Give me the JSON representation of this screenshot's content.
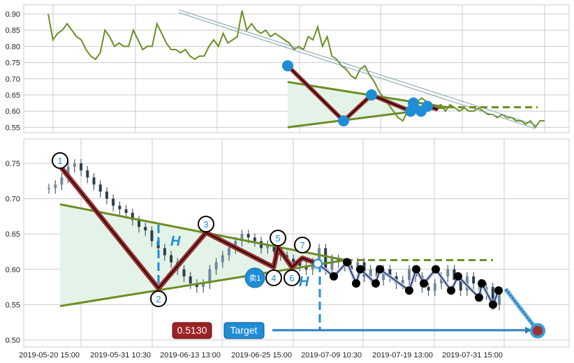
{
  "chart_data": [
    {
      "type": "line",
      "panel": "top",
      "yticks": [
        "0.90",
        "0.85",
        "0.80",
        "0.75",
        "0.70",
        "0.65",
        "0.60",
        "0.55"
      ],
      "ylim": [
        0.535,
        0.925
      ],
      "grid": true,
      "line_color": "#6b8e23",
      "values": [
        0.9,
        0.82,
        0.84,
        0.85,
        0.87,
        0.85,
        0.83,
        0.82,
        0.79,
        0.77,
        0.76,
        0.78,
        0.85,
        0.83,
        0.8,
        0.81,
        0.8,
        0.8,
        0.85,
        0.82,
        0.79,
        0.8,
        0.8,
        0.87,
        0.84,
        0.81,
        0.79,
        0.79,
        0.78,
        0.79,
        0.77,
        0.76,
        0.77,
        0.77,
        0.8,
        0.82,
        0.8,
        0.84,
        0.81,
        0.82,
        0.83,
        0.91,
        0.85,
        0.87,
        0.85,
        0.84,
        0.85,
        0.83,
        0.84,
        0.83,
        0.82,
        0.81,
        0.79,
        0.8,
        0.79,
        0.83,
        0.82,
        0.86,
        0.8,
        0.83,
        0.77,
        0.76,
        0.74,
        0.73,
        0.71,
        0.7,
        0.73,
        0.74,
        0.71,
        0.69,
        0.66,
        0.64,
        0.62,
        0.6,
        0.58,
        0.57,
        0.6,
        0.62,
        0.63,
        0.64,
        0.63,
        0.62,
        0.61,
        0.62,
        0.6,
        0.62,
        0.61,
        0.6,
        0.61,
        0.6,
        0.6,
        0.61,
        0.6,
        0.59,
        0.59,
        0.58,
        0.59,
        0.58,
        0.58,
        0.57,
        0.57,
        0.56,
        0.57,
        0.55,
        0.57,
        0.57
      ],
      "zigzag": [
        0.74,
        0.57,
        0.65,
        0.6,
        0.625,
        0.6,
        0.615,
        0.605
      ],
      "triangle": {
        "upper": [
          0.69,
          0.612
        ],
        "lower": [
          0.55,
          0.612
        ],
        "projection": 0.612
      },
      "colors": {
        "zigzag_marker": "#1f8dd6",
        "zigzag_line": "#a03030",
        "triangle": "#6b8e23",
        "fill": "#e3f3e8"
      }
    },
    {
      "type": "candlestick",
      "panel": "bottom",
      "yticks": [
        "0.75",
        "0.70",
        "0.65",
        "0.60",
        "0.55",
        "0.50"
      ],
      "ylim": [
        0.49,
        0.785
      ],
      "grid": true,
      "xticks": [
        "2019-05-20 15:00",
        "2019-05-31 10:30",
        "2019-06-13 13:00",
        "2019-06-25 15:00",
        "2019-07-09 10:30",
        "2019-07-19 13:00",
        "2019-07-31 15:00"
      ],
      "closes": [
        0.715,
        0.72,
        0.73,
        0.745,
        0.75,
        0.74,
        0.73,
        0.72,
        0.71,
        0.7,
        0.69,
        0.685,
        0.68,
        0.67,
        0.66,
        0.655,
        0.64,
        0.63,
        0.62,
        0.61,
        0.6,
        0.59,
        0.58,
        0.575,
        0.58,
        0.6,
        0.61,
        0.62,
        0.63,
        0.64,
        0.65,
        0.645,
        0.64,
        0.63,
        0.635,
        0.625,
        0.62,
        0.615,
        0.61,
        0.605,
        0.6,
        0.61,
        0.63,
        0.6,
        0.615,
        0.61,
        0.605,
        0.6,
        0.61,
        0.59,
        0.6,
        0.585,
        0.6,
        0.59,
        0.58,
        0.585,
        0.6,
        0.59,
        0.575,
        0.57,
        0.58,
        0.59,
        0.6,
        0.585,
        0.57,
        0.59,
        0.58,
        0.565,
        0.575,
        0.55,
        0.565
      ],
      "pattern_points": [
        {
          "label": "1",
          "value": 0.746
        },
        {
          "label": "2",
          "value": 0.573
        },
        {
          "label": "3",
          "value": 0.652
        },
        {
          "label": "4",
          "value": 0.603
        },
        {
          "label": "5",
          "value": 0.631
        },
        {
          "label": "6",
          "value": 0.603
        },
        {
          "label": "7",
          "value": 0.616
        },
        {
          "label": "",
          "value": 0.608
        }
      ],
      "swing_points": [
        0.59,
        0.61,
        0.58,
        0.6,
        0.58,
        0.6,
        0.57,
        0.6,
        0.58,
        0.6,
        0.57,
        0.59,
        0.56,
        0.58,
        0.55,
        0.57
      ],
      "triangle": {
        "upper": [
          0.692,
          0.613
        ],
        "lower": [
          0.548,
          0.613
        ],
        "projection": 0.613
      },
      "height_marker": "H",
      "sell_label": "卖1",
      "target_value_label": "0.5130",
      "target_label": "Target",
      "target_value": 0.513,
      "colors": {
        "pattern_line": "#a03030",
        "triangle": "#6b8e23",
        "fill": "#e3f3e8",
        "target_box": "#1f8dd6",
        "price_box": "#9b2226",
        "swing": "#000000",
        "candles": "#2c3e50"
      }
    }
  ]
}
